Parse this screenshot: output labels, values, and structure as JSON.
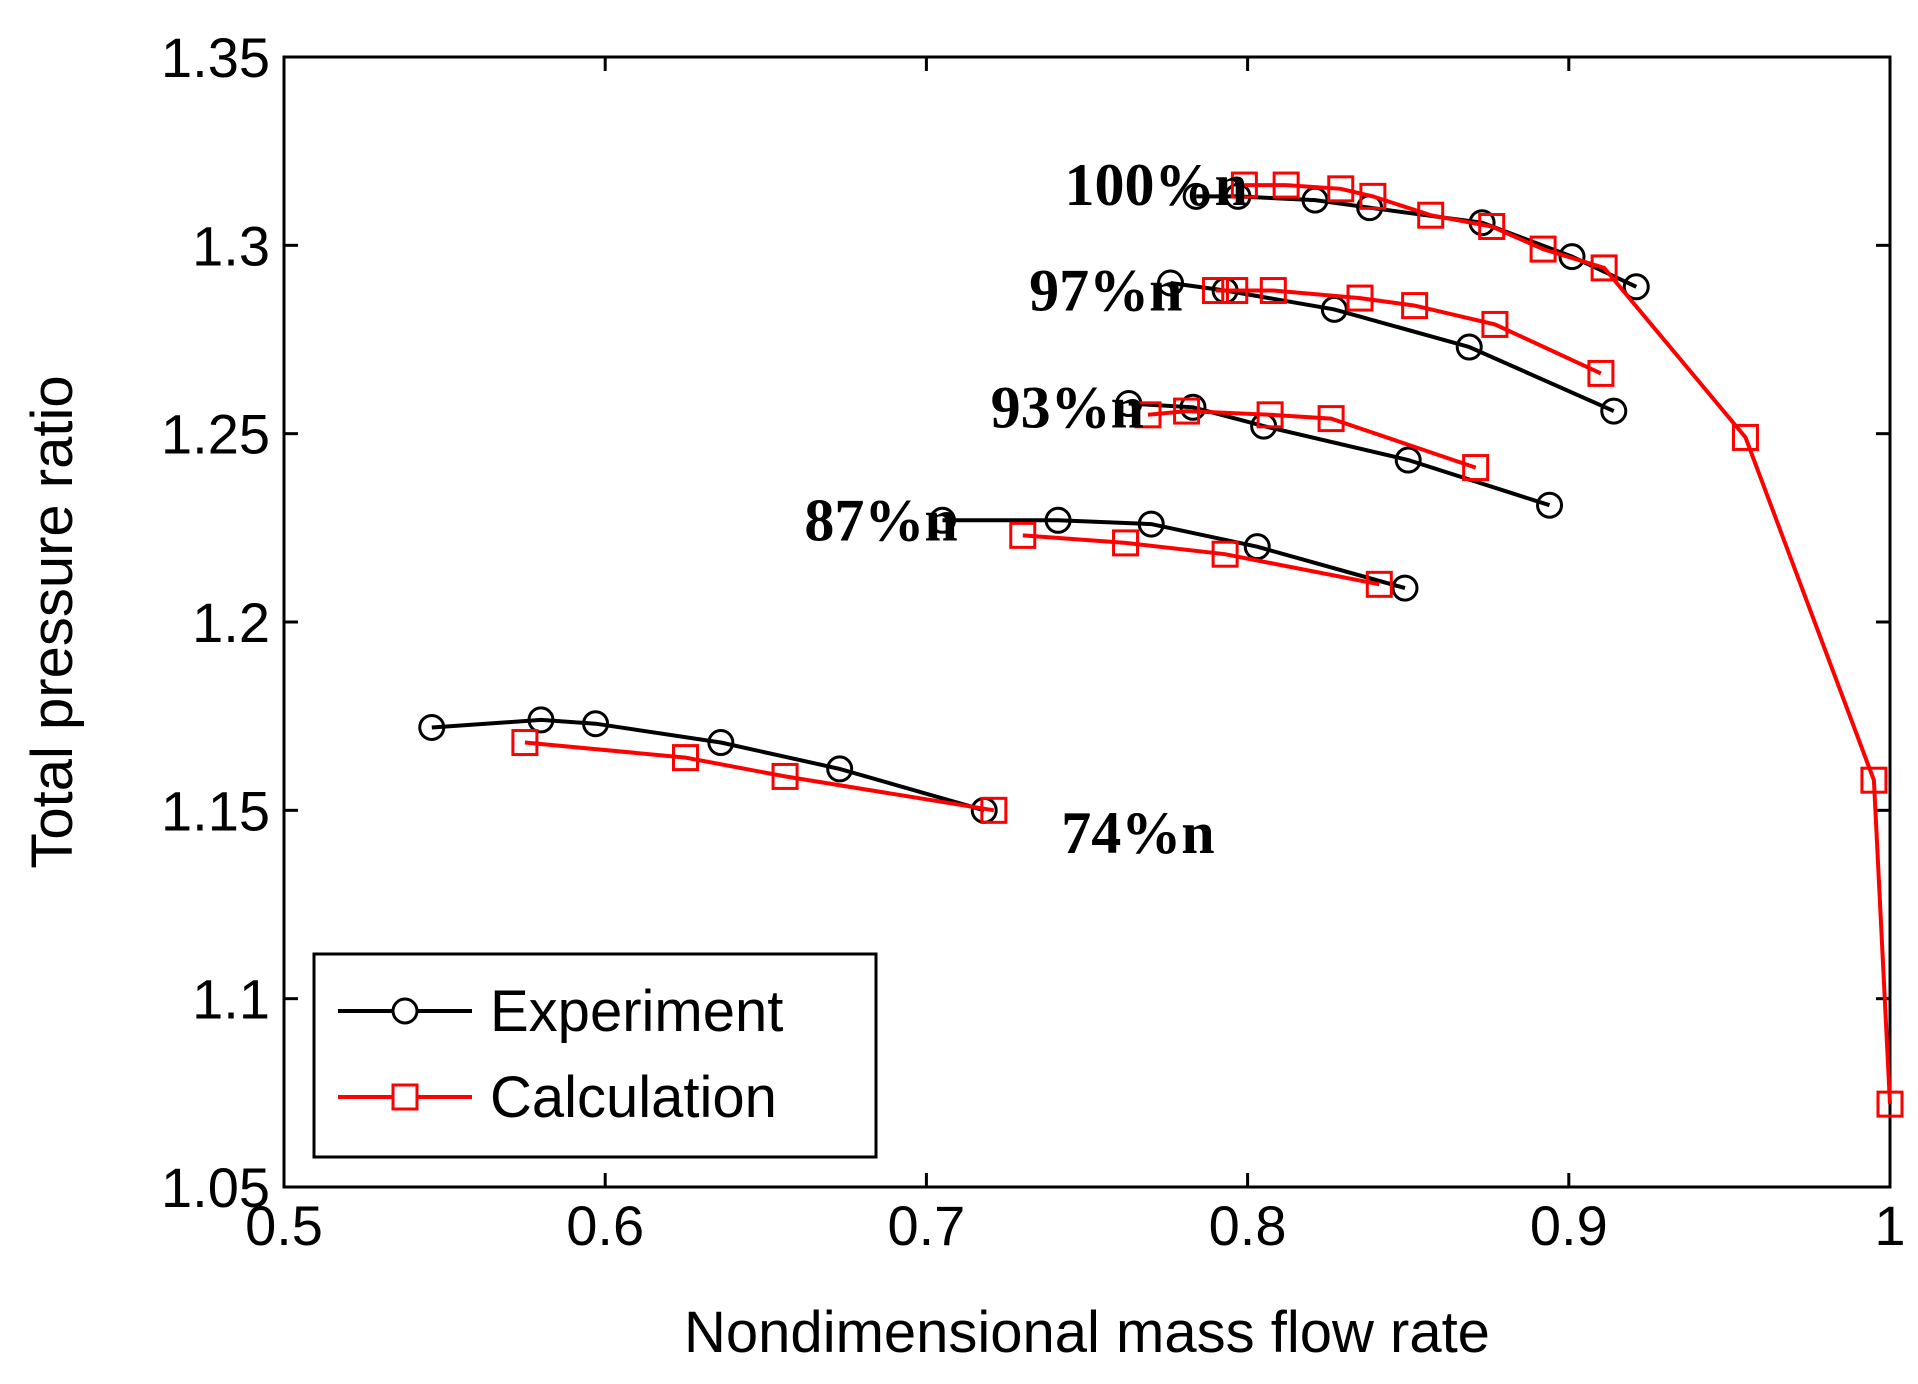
{
  "chart_data": {
    "type": "line",
    "title": "",
    "xlabel": "Nondimensional mass flow rate",
    "ylabel": "Total pressure ratio",
    "xlim": [
      0.5,
      1.0
    ],
    "ylim": [
      1.05,
      1.35
    ],
    "xticks": [
      0.5,
      0.6,
      0.7,
      0.8,
      0.9,
      1.0
    ],
    "xtick_labels": [
      "0.5",
      "0.6",
      "0.7",
      "0.8",
      "0.9",
      "1"
    ],
    "yticks": [
      1.05,
      1.1,
      1.15,
      1.2,
      1.25,
      1.3,
      1.35
    ],
    "ytick_labels": [
      "1.05",
      "1.1",
      "1.15",
      "1.2",
      "1.25",
      "1.3",
      "1.35"
    ],
    "grid": false,
    "legend": {
      "position": "bottom-left",
      "entries": [
        "Experiment",
        "Calculation"
      ]
    },
    "annotations": [
      {
        "text": "100%n",
        "x": 0.743,
        "y": 1.316
      },
      {
        "text": "97%n",
        "x": 0.732,
        "y": 1.288
      },
      {
        "text": "93%n",
        "x": 0.72,
        "y": 1.257
      },
      {
        "text": "87%n",
        "x": 0.662,
        "y": 1.227
      },
      {
        "text": "74%n",
        "x": 0.742,
        "y": 1.144
      }
    ],
    "series": [
      {
        "name": "Experiment",
        "group": "100%n",
        "color": "#000000",
        "marker": "circle",
        "points": [
          [
            0.784,
            1.313
          ],
          [
            0.797,
            1.313
          ],
          [
            0.821,
            1.312
          ],
          [
            0.838,
            1.31
          ],
          [
            0.873,
            1.306
          ],
          [
            0.901,
            1.297
          ],
          [
            0.921,
            1.289
          ]
        ]
      },
      {
        "name": "Calculation",
        "group": "100%n",
        "color": "#ff0000",
        "marker": "square",
        "points": [
          [
            0.799,
            1.316
          ],
          [
            0.812,
            1.316
          ],
          [
            0.829,
            1.315
          ],
          [
            0.839,
            1.313
          ],
          [
            0.857,
            1.308
          ],
          [
            0.876,
            1.305
          ],
          [
            0.892,
            1.299
          ],
          [
            0.911,
            1.294
          ],
          [
            0.955,
            1.249
          ],
          [
            0.995,
            1.158
          ],
          [
            1.0,
            1.072
          ]
        ]
      },
      {
        "name": "Experiment",
        "group": "97%n",
        "color": "#000000",
        "marker": "circle",
        "points": [
          [
            0.776,
            1.29
          ],
          [
            0.793,
            1.288
          ],
          [
            0.827,
            1.283
          ],
          [
            0.869,
            1.273
          ],
          [
            0.914,
            1.256
          ]
        ]
      },
      {
        "name": "Calculation",
        "group": "97%n",
        "color": "#ff0000",
        "marker": "square",
        "points": [
          [
            0.79,
            1.288
          ],
          [
            0.796,
            1.288
          ],
          [
            0.808,
            1.288
          ],
          [
            0.835,
            1.286
          ],
          [
            0.852,
            1.284
          ],
          [
            0.877,
            1.279
          ],
          [
            0.91,
            1.266
          ]
        ]
      },
      {
        "name": "Experiment",
        "group": "93%n",
        "color": "#000000",
        "marker": "circle",
        "points": [
          [
            0.763,
            1.258
          ],
          [
            0.783,
            1.257
          ],
          [
            0.805,
            1.252
          ],
          [
            0.85,
            1.243
          ],
          [
            0.894,
            1.231
          ]
        ]
      },
      {
        "name": "Calculation",
        "group": "93%n",
        "color": "#ff0000",
        "marker": "square",
        "points": [
          [
            0.769,
            1.255
          ],
          [
            0.781,
            1.256
          ],
          [
            0.807,
            1.255
          ],
          [
            0.826,
            1.254
          ],
          [
            0.871,
            1.241
          ]
        ]
      },
      {
        "name": "Experiment",
        "group": "87%n",
        "color": "#000000",
        "marker": "circle",
        "points": [
          [
            0.705,
            1.227
          ],
          [
            0.741,
            1.227
          ],
          [
            0.77,
            1.226
          ],
          [
            0.803,
            1.22
          ],
          [
            0.849,
            1.209
          ]
        ]
      },
      {
        "name": "Calculation",
        "group": "87%n",
        "color": "#ff0000",
        "marker": "square",
        "points": [
          [
            0.73,
            1.223
          ],
          [
            0.762,
            1.221
          ],
          [
            0.793,
            1.218
          ],
          [
            0.841,
            1.21
          ]
        ]
      },
      {
        "name": "Experiment",
        "group": "74%n",
        "color": "#000000",
        "marker": "circle",
        "points": [
          [
            0.546,
            1.172
          ],
          [
            0.58,
            1.174
          ],
          [
            0.597,
            1.173
          ],
          [
            0.636,
            1.168
          ],
          [
            0.673,
            1.161
          ],
          [
            0.718,
            1.15
          ]
        ]
      },
      {
        "name": "Calculation",
        "group": "74%n",
        "color": "#ff0000",
        "marker": "square",
        "points": [
          [
            0.575,
            1.168
          ],
          [
            0.625,
            1.164
          ],
          [
            0.656,
            1.159
          ],
          [
            0.721,
            1.15
          ]
        ]
      }
    ]
  }
}
